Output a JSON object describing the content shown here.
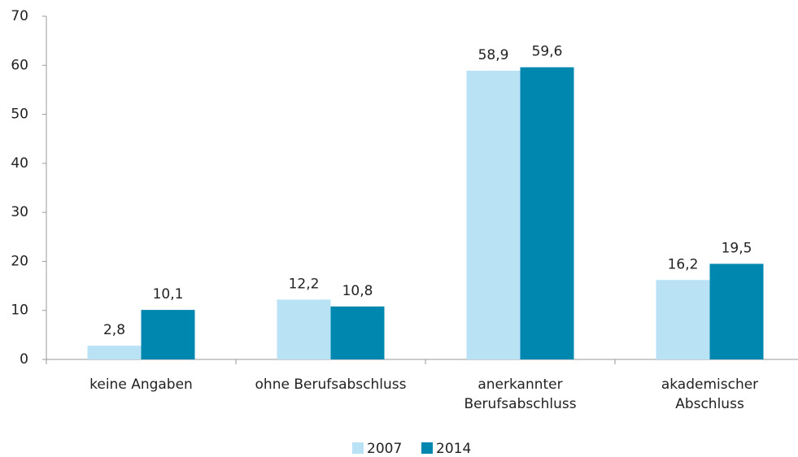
{
  "chart_data": {
    "type": "bar",
    "categories": [
      "keine Angaben",
      "ohne Berufsabschluss",
      "anerkannter\nBerufsabschluss",
      "akademischer\nAbschluss"
    ],
    "series": [
      {
        "name": "2007",
        "color": "#b9e3f5",
        "values": [
          2.8,
          12.2,
          58.9,
          16.2
        ],
        "value_labels": [
          "2,8",
          "12,2",
          "58,9",
          "16,2"
        ]
      },
      {
        "name": "2014",
        "color": "#0087b0",
        "values": [
          10.1,
          10.8,
          59.6,
          19.5
        ],
        "value_labels": [
          "10,1",
          "10,8",
          "59,6",
          "19,5"
        ]
      }
    ],
    "ylim": [
      0,
      70
    ],
    "yticks": [
      0,
      10,
      20,
      30,
      40,
      50,
      60,
      70
    ],
    "grid": false,
    "legend": "bottom"
  }
}
